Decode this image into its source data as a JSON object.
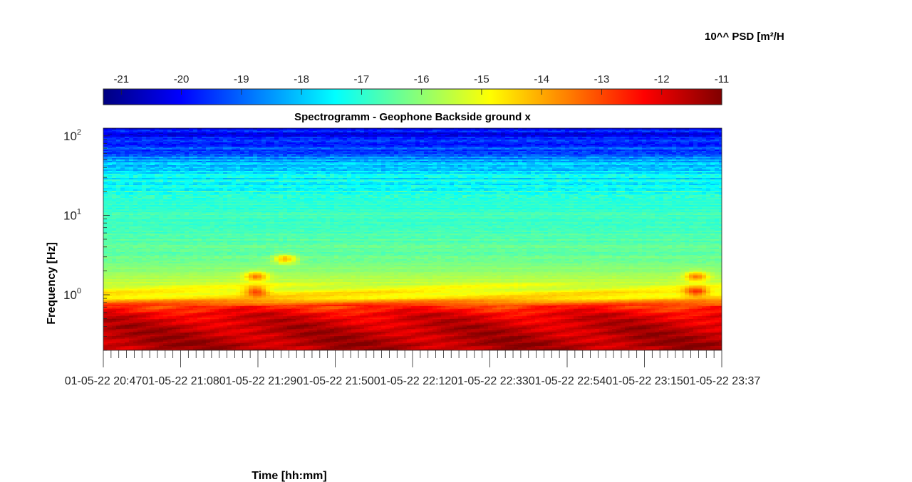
{
  "chart_data": {
    "type": "heatmap",
    "title": "Spectrogramm - Geophone Backside ground x",
    "xlabel": "Time [hh:mm]",
    "ylabel": "Frequency [Hz]",
    "colorbar_label": "10^^ PSD [m²/H",
    "colormap": "jet",
    "colorbar": {
      "range": [
        -21.3,
        -11
      ],
      "ticks": [
        -21,
        -20,
        -19,
        -18,
        -17,
        -16,
        -15,
        -14,
        -13,
        -12,
        -11
      ],
      "tick_labels": [
        "-21",
        "-20",
        "-19",
        "-18",
        "-17",
        "-16",
        "-15",
        "-14",
        "-13",
        "-12",
        "-11"
      ],
      "placement": "top"
    },
    "x_axis": {
      "start": "2022-05-01 20:47",
      "end": "2022-05-01 23:37",
      "tick_labels": [
        "01-05-22 20:47",
        "01-05-22 21:08",
        "01-05-22 21:29",
        "01-05-22 21:50",
        "01-05-22 22:12",
        "01-05-22 22:33",
        "01-05-22 22:54",
        "01-05-22 23:15",
        "01-05-22 23:37"
      ],
      "minor_ticks_per_major": 10
    },
    "y_axis": {
      "scale": "log",
      "ylim": [
        0.2,
        125
      ],
      "ticks": [
        1,
        10,
        100
      ],
      "tick_labels": [
        {
          "base": "10",
          "exp": "0"
        },
        {
          "base": "10",
          "exp": "1"
        },
        {
          "base": "10",
          "exp": "2"
        }
      ]
    },
    "psd_profile": {
      "frequency_hz": [
        0.2,
        0.3,
        0.45,
        0.6,
        0.75,
        0.9,
        1.1,
        1.4,
        1.8,
        2.5,
        3.5,
        5,
        7,
        10,
        15,
        22,
        30,
        45,
        65,
        90,
        125
      ],
      "log10_psd": [
        -11.4,
        -11.6,
        -11.8,
        -12.2,
        -13.0,
        -14.4,
        -14.9,
        -15.4,
        -15.8,
        -16.2,
        -16.5,
        -16.6,
        -16.7,
        -16.8,
        -17.0,
        -17.3,
        -17.6,
        -18.2,
        -19.3,
        -19.8,
        -20.0
      ]
    },
    "events": [
      {
        "time": "2022-05-01 21:29",
        "frequency_hz": [
          1.1,
          1.7
        ]
      },
      {
        "time": "2022-05-01 21:37",
        "frequency_hz": [
          2.8
        ]
      },
      {
        "time": "2022-05-01 23:30",
        "frequency_hz": [
          1.1,
          1.7
        ]
      }
    ]
  }
}
